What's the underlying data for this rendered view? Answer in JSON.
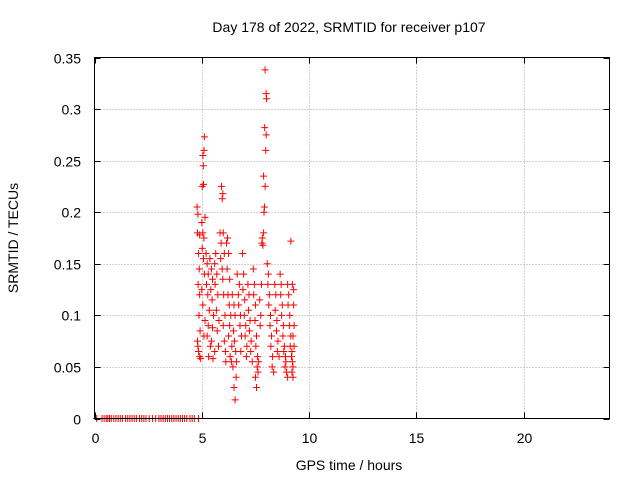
{
  "chart_data": {
    "type": "scatter",
    "title": "Day 178 of 2022, SRMTID for receiver p107",
    "xlabel": "GPS time / hours",
    "ylabel": "SRMTID / TECUs",
    "xlim": [
      0,
      24
    ],
    "ylim": [
      0,
      0.35
    ],
    "xticks": [
      0,
      5,
      10,
      15,
      20
    ],
    "yticks": [
      0,
      0.05,
      0.1,
      0.15,
      0.2,
      0.25,
      0.3,
      0.35
    ],
    "xtick_labels": [
      "0",
      "5",
      "10",
      "15",
      "20"
    ],
    "ytick_labels": [
      "0",
      "0.05",
      "0.1",
      "0.15",
      "0.2",
      "0.25",
      "0.3",
      "0.35"
    ],
    "grid": true,
    "marker": "+",
    "marker_color": "#ff0000",
    "series": [
      {
        "name": "SRMTID",
        "points": [
          [
            0.1,
            0
          ],
          [
            0.35,
            0
          ],
          [
            0.45,
            0
          ],
          [
            0.55,
            0
          ],
          [
            0.62,
            0
          ],
          [
            0.7,
            0
          ],
          [
            0.78,
            0
          ],
          [
            0.9,
            0
          ],
          [
            1.0,
            0
          ],
          [
            1.1,
            0
          ],
          [
            1.2,
            0
          ],
          [
            1.3,
            0
          ],
          [
            1.45,
            0
          ],
          [
            1.55,
            0
          ],
          [
            1.65,
            0
          ],
          [
            1.75,
            0
          ],
          [
            1.85,
            0
          ],
          [
            1.95,
            0
          ],
          [
            2.1,
            0
          ],
          [
            2.2,
            0
          ],
          [
            2.3,
            0
          ],
          [
            2.4,
            0
          ],
          [
            2.55,
            0
          ],
          [
            2.7,
            0
          ],
          [
            2.85,
            0
          ],
          [
            3.0,
            0
          ],
          [
            3.1,
            0
          ],
          [
            3.2,
            0
          ],
          [
            3.3,
            0
          ],
          [
            3.4,
            0
          ],
          [
            3.5,
            0
          ],
          [
            3.6,
            0
          ],
          [
            3.7,
            0
          ],
          [
            3.8,
            0
          ],
          [
            3.9,
            0
          ],
          [
            4.0,
            0
          ],
          [
            4.1,
            0
          ],
          [
            4.2,
            0
          ],
          [
            4.3,
            0
          ],
          [
            4.45,
            0
          ],
          [
            4.55,
            0
          ],
          [
            4.65,
            0
          ],
          [
            4.85,
            0
          ],
          [
            4.78,
            0.205
          ],
          [
            4.82,
            0.198
          ],
          [
            4.8,
            0.18
          ],
          [
            4.9,
            0.178
          ],
          [
            4.85,
            0.16
          ],
          [
            4.88,
            0.145
          ],
          [
            4.83,
            0.13
          ],
          [
            4.9,
            0.12
          ],
          [
            4.87,
            0.1
          ],
          [
            4.92,
            0.085
          ],
          [
            4.8,
            0.075
          ],
          [
            4.85,
            0.065
          ],
          [
            4.9,
            0.06
          ],
          [
            4.95,
            0.058
          ],
          [
            4.82,
            0.07
          ],
          [
            5.0,
            0.19
          ],
          [
            5.05,
            0.18
          ],
          [
            5.02,
            0.165
          ],
          [
            5.1,
            0.175
          ],
          [
            5.08,
            0.155
          ],
          [
            5.12,
            0.14
          ],
          [
            5.0,
            0.125
          ],
          [
            5.05,
            0.11
          ],
          [
            5.15,
            0.095
          ],
          [
            5.1,
            0.08
          ],
          [
            5.02,
            0.225
          ],
          [
            5.08,
            0.227
          ],
          [
            5.1,
            0.26
          ],
          [
            5.05,
            0.255
          ],
          [
            5.12,
            0.273
          ],
          [
            5.07,
            0.245
          ],
          [
            5.15,
            0.195
          ],
          [
            5.2,
            0.16
          ],
          [
            5.25,
            0.15
          ],
          [
            5.3,
            0.14
          ],
          [
            5.22,
            0.13
          ],
          [
            5.28,
            0.12
          ],
          [
            5.35,
            0.105
          ],
          [
            5.3,
            0.09
          ],
          [
            5.25,
            0.08
          ],
          [
            5.4,
            0.07
          ],
          [
            5.32,
            0.06
          ],
          [
            5.38,
            0.155
          ],
          [
            5.45,
            0.145
          ],
          [
            5.5,
            0.135
          ],
          [
            5.42,
            0.125
          ],
          [
            5.48,
            0.115
          ],
          [
            5.55,
            0.1
          ],
          [
            5.5,
            0.088
          ],
          [
            5.45,
            0.075
          ],
          [
            5.6,
            0.065
          ],
          [
            5.52,
            0.058
          ],
          [
            5.6,
            0.15
          ],
          [
            5.65,
            0.16
          ],
          [
            5.7,
            0.14
          ],
          [
            5.62,
            0.13
          ],
          [
            5.75,
            0.12
          ],
          [
            5.68,
            0.105
          ],
          [
            5.8,
            0.095
          ],
          [
            5.72,
            0.085
          ],
          [
            5.78,
            0.07
          ],
          [
            5.85,
            0.18
          ],
          [
            5.9,
            0.17
          ],
          [
            5.88,
            0.155
          ],
          [
            5.95,
            0.145
          ],
          [
            5.92,
            0.225
          ],
          [
            5.98,
            0.218
          ],
          [
            5.95,
            0.213
          ],
          [
            6.0,
            0.18
          ],
          [
            6.05,
            0.16
          ],
          [
            5.98,
            0.135
          ],
          [
            6.02,
            0.12
          ],
          [
            6.08,
            0.1
          ],
          [
            6.0,
            0.09
          ],
          [
            6.05,
            0.075
          ],
          [
            6.1,
            0.065
          ],
          [
            6.12,
            0.055
          ],
          [
            6.15,
            0.17
          ],
          [
            6.2,
            0.175
          ],
          [
            6.25,
            0.16
          ],
          [
            6.18,
            0.145
          ],
          [
            6.3,
            0.135
          ],
          [
            6.22,
            0.12
          ],
          [
            6.28,
            0.11
          ],
          [
            6.35,
            0.1
          ],
          [
            6.3,
            0.09
          ],
          [
            6.25,
            0.08
          ],
          [
            6.4,
            0.07
          ],
          [
            6.32,
            0.06
          ],
          [
            6.38,
            0.055
          ],
          [
            6.45,
            0.05
          ],
          [
            6.42,
            0.12
          ],
          [
            6.5,
            0.11
          ],
          [
            6.55,
            0.1
          ],
          [
            6.48,
            0.085
          ],
          [
            6.52,
            0.075
          ],
          [
            6.58,
            0.065
          ],
          [
            6.5,
            0.03
          ],
          [
            6.55,
            0.018
          ],
          [
            6.6,
            0.04
          ],
          [
            6.62,
            0.055
          ],
          [
            6.65,
            0.14
          ],
          [
            6.7,
            0.12
          ],
          [
            6.75,
            0.13
          ],
          [
            6.72,
            0.11
          ],
          [
            6.8,
            0.1
          ],
          [
            6.78,
            0.09
          ],
          [
            6.85,
            0.08
          ],
          [
            6.82,
            0.065
          ],
          [
            6.9,
            0.16
          ],
          [
            6.95,
            0.14
          ],
          [
            6.92,
            0.125
          ],
          [
            7.0,
            0.115
          ],
          [
            6.98,
            0.1
          ],
          [
            7.05,
            0.09
          ],
          [
            7.02,
            0.08
          ],
          [
            7.1,
            0.07
          ],
          [
            7.08,
            0.06
          ],
          [
            7.15,
            0.13
          ],
          [
            7.2,
            0.12
          ],
          [
            7.18,
            0.105
          ],
          [
            7.25,
            0.095
          ],
          [
            7.22,
            0.085
          ],
          [
            7.3,
            0.075
          ],
          [
            7.28,
            0.065
          ],
          [
            7.35,
            0.055
          ],
          [
            7.4,
            0.145
          ],
          [
            7.45,
            0.13
          ],
          [
            7.42,
            0.12
          ],
          [
            7.5,
            0.11
          ],
          [
            7.48,
            0.095
          ],
          [
            7.55,
            0.08
          ],
          [
            7.52,
            0.07
          ],
          [
            7.6,
            0.06
          ],
          [
            7.58,
            0.05
          ],
          [
            7.62,
            0.045
          ],
          [
            7.5,
            0.04
          ],
          [
            7.55,
            0.03
          ],
          [
            7.65,
            0.055
          ],
          [
            7.7,
            0.115
          ],
          [
            7.75,
            0.1
          ],
          [
            7.72,
            0.09
          ],
          [
            7.78,
            0.13
          ],
          [
            7.8,
            0.17
          ],
          [
            7.82,
            0.175
          ],
          [
            7.85,
            0.168
          ],
          [
            7.88,
            0.18
          ],
          [
            7.9,
            0.2
          ],
          [
            7.92,
            0.205
          ],
          [
            7.95,
            0.225
          ],
          [
            7.88,
            0.235
          ],
          [
            7.98,
            0.26
          ],
          [
            8.0,
            0.275
          ],
          [
            7.93,
            0.282
          ],
          [
            8.02,
            0.31
          ],
          [
            8.0,
            0.315
          ],
          [
            7.95,
            0.338
          ],
          [
            8.05,
            0.15
          ],
          [
            8.1,
            0.14
          ],
          [
            8.08,
            0.13
          ],
          [
            8.15,
            0.12
          ],
          [
            8.12,
            0.11
          ],
          [
            8.2,
            0.1
          ],
          [
            8.18,
            0.09
          ],
          [
            8.25,
            0.08
          ],
          [
            8.22,
            0.07
          ],
          [
            8.3,
            0.06
          ],
          [
            8.28,
            0.05
          ],
          [
            8.35,
            0.045
          ],
          [
            8.4,
            0.13
          ],
          [
            8.45,
            0.12
          ],
          [
            8.42,
            0.105
          ],
          [
            8.5,
            0.095
          ],
          [
            8.48,
            0.085
          ],
          [
            8.55,
            0.075
          ],
          [
            8.52,
            0.065
          ],
          [
            8.6,
            0.06
          ],
          [
            8.65,
            0.14
          ],
          [
            8.7,
            0.13
          ],
          [
            8.68,
            0.12
          ],
          [
            8.75,
            0.11
          ],
          [
            8.72,
            0.1
          ],
          [
            8.8,
            0.09
          ],
          [
            8.78,
            0.08
          ],
          [
            8.85,
            0.07
          ],
          [
            8.82,
            0.065
          ],
          [
            8.9,
            0.06
          ],
          [
            8.88,
            0.05
          ],
          [
            8.95,
            0.045
          ],
          [
            9.0,
            0.04
          ],
          [
            8.92,
            0.055
          ],
          [
            9.0,
            0.13
          ],
          [
            9.05,
            0.12
          ],
          [
            9.02,
            0.11
          ],
          [
            9.1,
            0.1
          ],
          [
            9.08,
            0.09
          ],
          [
            9.15,
            0.08
          ],
          [
            9.12,
            0.07
          ],
          [
            9.2,
            0.065
          ],
          [
            9.18,
            0.06
          ],
          [
            9.22,
            0.055
          ],
          [
            9.25,
            0.05
          ],
          [
            9.2,
            0.045
          ],
          [
            9.25,
            0.04
          ],
          [
            9.15,
            0.172
          ],
          [
            9.22,
            0.13
          ],
          [
            9.28,
            0.11
          ],
          [
            9.3,
            0.09
          ],
          [
            9.25,
            0.08
          ],
          [
            9.3,
            0.07
          ],
          [
            9.28,
            0.125
          ]
        ]
      }
    ]
  }
}
